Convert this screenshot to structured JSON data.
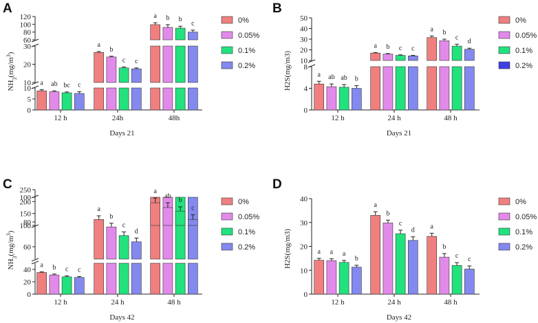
{
  "series_names": [
    "0%",
    "0.05%",
    "0.1%",
    "0.2%"
  ],
  "colors": {
    "c0": "#f07f7f",
    "c1": "#e28aea",
    "c2": "#22e27e",
    "c3": "#8389ee",
    "c3_dark": "#3f3fe6",
    "stroke": "#333333"
  },
  "chart_data": [
    {
      "panel": "A",
      "type": "bar",
      "title": "",
      "xlabel": "Days 21",
      "ylabel": "NH3(mg/m3)",
      "categories": [
        "12 h",
        "24h",
        "48h"
      ],
      "series": [
        {
          "name": "0%",
          "values": [
            8.7,
            26.5,
            99
          ],
          "errors": [
            0.5,
            0.5,
            5
          ],
          "letters": [
            "a",
            "a",
            "a"
          ]
        },
        {
          "name": "0.05%",
          "values": [
            8.3,
            24.0,
            92
          ],
          "errors": [
            0.4,
            0.4,
            7
          ],
          "letters": [
            "ab",
            "b",
            "b"
          ]
        },
        {
          "name": "0.1%",
          "values": [
            7.8,
            18.0,
            90
          ],
          "errors": [
            0.4,
            0.5,
            5
          ],
          "letters": [
            "bc",
            "c",
            "b"
          ]
        },
        {
          "name": "0.2%",
          "values": [
            7.5,
            17.5,
            80
          ],
          "errors": [
            0.8,
            0.5,
            5
          ],
          "letters": [
            "c",
            "c",
            "c"
          ]
        }
      ],
      "yaxis_segments": [
        {
          "range": [
            0,
            10
          ],
          "ticks": [
            0,
            5,
            10
          ]
        },
        {
          "range": [
            10,
            30
          ],
          "ticks": [
            10,
            20,
            30
          ]
        },
        {
          "range": [
            60,
            120
          ],
          "ticks": [
            60,
            80,
            100,
            120
          ]
        }
      ],
      "legend_dark_last": false
    },
    {
      "panel": "B",
      "type": "bar",
      "title": "",
      "xlabel": "Days 21",
      "ylabel": "H2S(mg/m3)",
      "categories": [
        "12 h",
        "24 h",
        "48 h"
      ],
      "series": [
        {
          "name": "0%",
          "values": [
            4.8,
            17.0,
            31.5
          ],
          "errors": [
            0.5,
            0.5,
            1.5
          ],
          "letters": [
            "a",
            "a",
            "a"
          ]
        },
        {
          "name": "0.05%",
          "values": [
            4.3,
            16.0,
            28.5
          ],
          "errors": [
            0.5,
            0.5,
            1.5
          ],
          "letters": [
            "ab",
            "b",
            "b"
          ]
        },
        {
          "name": "0.1%",
          "values": [
            4.2,
            14.8,
            23.5
          ],
          "errors": [
            0.5,
            0.5,
            1.8
          ],
          "letters": [
            "ab",
            "c",
            "c"
          ]
        },
        {
          "name": "0.2%",
          "values": [
            4.0,
            14.3,
            20.5
          ],
          "errors": [
            0.5,
            0.5,
            1.0
          ],
          "letters": [
            "b",
            "c",
            "d"
          ]
        }
      ],
      "yaxis_segments": [
        {
          "range": [
            0,
            8
          ],
          "ticks": [
            0,
            4,
            8
          ]
        },
        {
          "range": [
            10,
            50
          ],
          "ticks": [
            10,
            20,
            30,
            40,
            50
          ]
        }
      ],
      "legend_dark_last": true
    },
    {
      "panel": "C",
      "type": "bar",
      "title": "",
      "xlabel": "Days 42",
      "ylabel": "NH3(mg/m3)",
      "categories": [
        "12 h",
        "24 h",
        "48 h"
      ],
      "series": [
        {
          "name": "0%",
          "values": [
            35,
            82,
            195
          ],
          "errors": [
            1,
            3,
            20
          ],
          "letters": [
            "a",
            "a",
            "a"
          ]
        },
        {
          "name": "0.05%",
          "values": [
            31,
            76,
            175
          ],
          "errors": [
            1.5,
            3,
            20
          ],
          "letters": [
            "b",
            "b",
            "ab"
          ]
        },
        {
          "name": "0.1%",
          "values": [
            28,
            69,
            160
          ],
          "errors": [
            1.5,
            3,
            18
          ],
          "letters": [
            "c",
            "c",
            "b"
          ]
        },
        {
          "name": "0.2%",
          "values": [
            27,
            64,
            125
          ],
          "errors": [
            1.5,
            3,
            20
          ],
          "letters": [
            "c",
            "d",
            "c"
          ]
        }
      ],
      "yaxis_segments": [
        {
          "range": [
            0,
            50
          ],
          "ticks": [
            0,
            20,
            40
          ]
        },
        {
          "range": [
            50,
            100
          ],
          "ticks": [
            60,
            80,
            100
          ]
        },
        {
          "range": [
            100,
            250
          ],
          "ticks": [
            100,
            150,
            200,
            250
          ]
        }
      ],
      "legend_dark_last": false
    },
    {
      "panel": "D",
      "type": "bar",
      "title": "",
      "xlabel": "Days 42",
      "ylabel": "H2S(mg/m3)",
      "categories": [
        "12 h",
        "24 h",
        "48 h"
      ],
      "series": [
        {
          "name": "0%",
          "values": [
            14.2,
            33.0,
            24.2
          ],
          "errors": [
            0.8,
            1.5,
            1.3
          ],
          "letters": [
            "a",
            "a",
            "a"
          ]
        },
        {
          "name": "0.05%",
          "values": [
            14.0,
            29.8,
            15.5
          ],
          "errors": [
            0.8,
            1.2,
            1.5
          ],
          "letters": [
            "a",
            "b",
            "b"
          ]
        },
        {
          "name": "0.1%",
          "values": [
            13.3,
            25.3,
            12.0
          ],
          "errors": [
            0.8,
            1.5,
            1.2
          ],
          "letters": [
            "a",
            "c",
            "c"
          ]
        },
        {
          "name": "0.2%",
          "values": [
            11.3,
            22.5,
            10.5
          ],
          "errors": [
            0.8,
            1.5,
            1.3
          ],
          "letters": [
            "b",
            "d",
            "c"
          ]
        }
      ],
      "yaxis_segments": [
        {
          "range": [
            0,
            40
          ],
          "ticks": [
            0,
            10,
            20,
            30,
            40
          ]
        }
      ],
      "legend_dark_last": false
    }
  ]
}
